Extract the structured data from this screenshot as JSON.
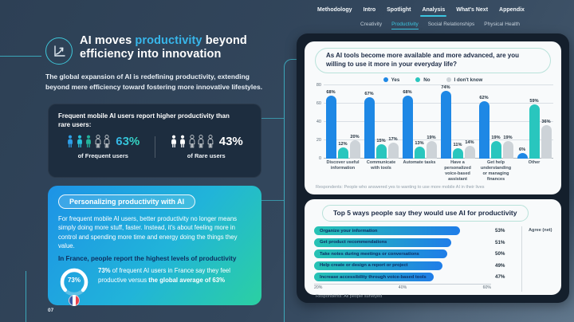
{
  "nav": {
    "primary": [
      {
        "label": "Methodology",
        "active": false
      },
      {
        "label": "Intro",
        "active": false
      },
      {
        "label": "Spotlight",
        "active": false
      },
      {
        "label": "Analysis",
        "active": true
      },
      {
        "label": "What's Next",
        "active": false
      },
      {
        "label": "Appendix",
        "active": false
      }
    ],
    "secondary": [
      {
        "label": "Creativity",
        "active": false
      },
      {
        "label": "Productivity",
        "active": true
      },
      {
        "label": "Social Relationships",
        "active": false
      },
      {
        "label": "Physical Health",
        "active": false
      }
    ]
  },
  "header": {
    "title_pre": "AI moves ",
    "title_highlight": "productivity",
    "title_post": " beyond efficiency into innovation",
    "intro": "The global expansion of AI is redefining productivity, extending beyond mere efficiency toward fostering more innovative lifestyles."
  },
  "stats_card": {
    "heading": "Frequent mobile AI users report higher productivity than rare users:",
    "frequent": {
      "value": "63%",
      "label": "of Frequent users",
      "filled": 3,
      "total": 5,
      "fill_colors": [
        "#2e9fe8",
        "#28c2dc",
        "#23b39b"
      ]
    },
    "rare": {
      "value": "43%",
      "label": "of Rare users",
      "filled": 2,
      "total": 5,
      "fill_colors": [
        "#ffffff",
        "#ffffff"
      ]
    }
  },
  "highlight_card": {
    "badge": "Personalizing productivity with AI",
    "body": "For frequent mobile AI users, better productivity no longer means simply doing more stuff, faster. Instead, it's about feeling more in control and spending more time and energy doing the things they value.",
    "emphasis": "In France, people report the highest levels of productivity",
    "gauge_value": "73%",
    "gauge_percent": 73,
    "detail_bold1": "73%",
    "detail_text1": " of frequent AI users in France say they feel productive versus ",
    "detail_bold2": "the global average of 63%"
  },
  "page_number": "07",
  "chart_data": [
    {
      "type": "bar",
      "title": "As AI tools become more available and more advanced, are you willing to use it more in your everyday life?",
      "categories": [
        "Discover useful information",
        "Communicate with tools",
        "Automate tasks",
        "Have a personalized voice-based assistant",
        "Get help understanding or managing finances",
        "Other"
      ],
      "series": [
        {
          "name": "Yes",
          "color": "#1e88e5",
          "values": [
            68,
            67,
            68,
            74,
            62,
            6
          ]
        },
        {
          "name": "No",
          "color": "#29c6be",
          "values": [
            12,
            15,
            13,
            11,
            19,
            59
          ]
        },
        {
          "name": "I don't know",
          "color": "#cdd3d8",
          "values": [
            20,
            17,
            19,
            14,
            19,
            36
          ]
        }
      ],
      "ylim": [
        0,
        80
      ],
      "yticks": [
        0,
        20,
        40,
        60,
        80
      ],
      "grid": true,
      "legend_position": "top",
      "footnote": "Respondents: People who answered yes to wanting to use more mobile AI in their lives"
    },
    {
      "type": "bar-horizontal",
      "title": "Top 5 ways people say they would use AI for productivity",
      "categories": [
        "Organize your information",
        "Get product recommendations",
        "Take notes during meetings or conversations",
        "Help create or design a report or project",
        "Increase accessibility through voice-based tools"
      ],
      "values": [
        53,
        51,
        50,
        49,
        47
      ],
      "value_labels": [
        "53%",
        "51%",
        "50%",
        "49%",
        "47%"
      ],
      "xlim": [
        20,
        60
      ],
      "xticks": [
        "20%",
        "40%",
        "60%"
      ],
      "side_label": "Agree (net)",
      "footnote": "Respondents: All people surveyed"
    }
  ]
}
